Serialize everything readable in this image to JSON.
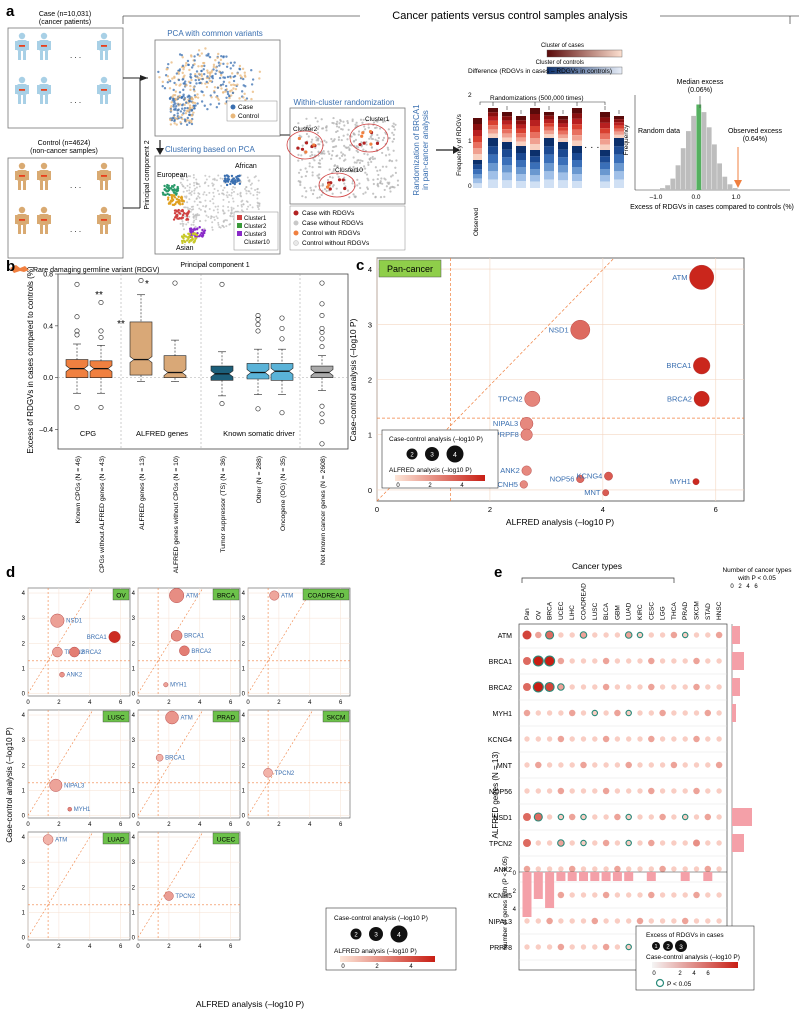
{
  "panels": {
    "a": {
      "label": "a",
      "header": "Cancer patients versus control samples analysis",
      "case_title": "Case (n=10,031)",
      "case_sub": "(cancer patients)",
      "control_title": "Control (n=4624)",
      "control_sub": "(non-cancer samples)",
      "rdgv_label": "Rare damaging germline variant (RDGV)",
      "pca_title": "PCA with common variants",
      "pca_legend": [
        "Case",
        "Control"
      ],
      "pca_ylabel": "Principal component 2",
      "pca_xlabel": "Principal component 1",
      "clustering_title": "Clustering based on PCA",
      "populations": [
        "African",
        "European",
        "Asian"
      ],
      "cluster_legend": [
        "Cluster1",
        "Cluster2",
        "Cluster3",
        "Cluster10"
      ],
      "within_title": "Within-cluster randomization",
      "within_clusters": [
        "Cluster2",
        "Cluster1",
        "Cluster10"
      ],
      "within_legend": [
        "Case with RDGVs",
        "Case without RDGVs",
        "Control with RDGVs",
        "Control without RDGVs"
      ],
      "rand_title_1": "Randomization of BRCA1",
      "rand_title_2": "in pan-cancer analysis",
      "difference_label": "Difference (RDGVs in cases – RDGVs in controls)",
      "freq_label": "Frequency of RDGVs",
      "observed_label": "Observed",
      "randomizations_label": "Randomizations (500,000 times)",
      "cluster_cases": "Cluster of cases",
      "cluster_controls": "Cluster of controls",
      "y_ticks": [
        "0",
        "1",
        "2"
      ],
      "hist_median": "Median excess",
      "hist_median_val": "(0.06%)",
      "hist_random": "Random data",
      "hist_observed": "Observed excess",
      "hist_observed_val": "(0.64%)",
      "hist_ylabel": "Frequency",
      "hist_xlabel": "Excess of RDGVs in cases compared to controls (%)",
      "hist_xticks": [
        "–1.0",
        "0.0",
        "1.0"
      ]
    },
    "b": {
      "label": "b",
      "ylabel": "Excess of RDGVs in cases compared to controls (%)",
      "yticks": [
        "–0.4",
        "0.0",
        "0.4",
        "0.8"
      ],
      "groups": [
        "CPG",
        "ALFRED genes",
        "Known somatic driver"
      ],
      "stars": [
        "**",
        "**",
        "*"
      ]
    },
    "c": {
      "label": "c",
      "title": "Pan-cancer",
      "xlabel": "ALFRED analysis  (–log10 P)",
      "ylabel": "Case-control analysis  (–log10 P)",
      "xticks": [
        "0",
        "2",
        "4",
        "6"
      ],
      "yticks": [
        "0",
        "1",
        "2",
        "3",
        "4"
      ],
      "legend_size_title": "Case-control analysis (–log10 P)",
      "legend_sizes": [
        "2",
        "3",
        "4"
      ],
      "legend_color_title": "ALFRED analysis (–log10 P)",
      "legend_color_ticks": [
        "0",
        "2",
        "4"
      ]
    },
    "d": {
      "label": "d",
      "ylabel": "Case-control analysis  (–log10 P)",
      "xlabel": "ALFRED analysis  (–log10 P)",
      "ticks": [
        "0",
        "2",
        "4",
        "6"
      ],
      "yticks": [
        "0",
        "1",
        "2",
        "3",
        "4"
      ],
      "legend_size_title": "Case-control analysis (–log10 P)",
      "legend_sizes": [
        "2",
        "3",
        "4"
      ],
      "legend_color_title": "ALFRED analysis (–log10 P)",
      "legend_color_ticks": [
        "0",
        "2",
        "4"
      ]
    },
    "e": {
      "label": "e",
      "header": "Cancer types",
      "cancer_types": [
        "Pan",
        "OV",
        "BRCA",
        "UCEC",
        "LIHC",
        "COADREAD",
        "LUSC",
        "BLCA",
        "GBM",
        "LUAD",
        "KIRC",
        "CESC",
        "LGG",
        "THCA",
        "PRAD",
        "SKCM",
        "STAD",
        "HNSC"
      ],
      "genes": [
        "ATM",
        "BRCA1",
        "BRCA2",
        "MYH1",
        "KCNG4",
        "MNT",
        "NOP56",
        "NSD1",
        "TPCN2",
        "ANK2",
        "KCNH5",
        "NIPAL3",
        "PRPF8"
      ],
      "gene_axis_label": "ALFRED genes (N = 13)",
      "right_bar_title": "Number of cancer types with P < 0.05",
      "right_bar_ticks": [
        "0",
        "2",
        "4",
        "6"
      ],
      "bottom_bar_label": "Number of genes with (P < 0.05)",
      "bottom_bar_ticks": [
        "0",
        "2",
        "4"
      ],
      "legend_excess": "Excess of RDGVs in cases",
      "legend_sizes": [
        "1",
        "2",
        "3"
      ],
      "legend_color_title": "Case-control analysis (–log10 P)",
      "legend_color_ticks": [
        "0",
        "2",
        "4",
        "6"
      ],
      "legend_p": "P < 0.05"
    }
  },
  "chart_data": [
    {
      "type": "box",
      "panel": "b",
      "categories": [
        "Known CPGs (N = 46)",
        "CPGs without ALFRED genes (N = 43)",
        "ALFRED genes (N = 13)",
        "ALFRED genes without CPGs (N = 10)",
        "Tumor suppressor (TS) (N = 36)",
        "Other (N = 288)",
        "Oncogene (OG) (N = 35)",
        "Not known cancer genes (N = 2608)"
      ],
      "colors": [
        "#f08040",
        "#f08040",
        "#d9a877",
        "#d9a877",
        "#1c5f7a",
        "#5ab3d8",
        "#5ab3d8",
        "#aaaaaa"
      ],
      "boxes": [
        {
          "q1": 0.0,
          "median": 0.07,
          "q3": 0.14,
          "low": -0.12,
          "high": 0.26,
          "out": [
            0.33,
            0.36,
            0.47,
            0.72,
            -0.23
          ]
        },
        {
          "q1": 0.0,
          "median": 0.07,
          "q3": 0.13,
          "low": -0.12,
          "high": 0.25,
          "out": [
            0.31,
            0.36,
            0.58,
            -0.23
          ]
        },
        {
          "q1": 0.02,
          "median": 0.14,
          "q3": 0.43,
          "low": -0.03,
          "high": 0.64,
          "out": [
            0.75
          ]
        },
        {
          "q1": 0.0,
          "median": 0.04,
          "q3": 0.17,
          "low": -0.03,
          "high": 0.29,
          "out": [
            0.73
          ]
        },
        {
          "q1": -0.02,
          "median": 0.03,
          "q3": 0.09,
          "low": -0.14,
          "high": 0.2,
          "out": [
            0.72,
            -0.2
          ]
        },
        {
          "q1": -0.01,
          "median": 0.04,
          "q3": 0.11,
          "low": -0.13,
          "high": 0.22,
          "out": [
            0.36,
            0.41,
            0.45,
            0.48,
            -0.24
          ]
        },
        {
          "q1": -0.02,
          "median": 0.05,
          "q3": 0.11,
          "low": -0.13,
          "high": 0.22,
          "out": [
            0.3,
            0.38,
            0.46,
            -0.27
          ]
        },
        {
          "q1": 0.0,
          "median": 0.04,
          "q3": 0.09,
          "low": -0.1,
          "high": 0.17,
          "out": [
            0.24,
            0.3,
            0.35,
            0.38,
            0.48,
            0.57,
            0.73,
            -0.22,
            -0.28,
            -0.34,
            -0.51
          ]
        }
      ],
      "ylim": [
        -0.55,
        0.8
      ]
    },
    {
      "type": "scatter",
      "panel": "c",
      "xlim": [
        0,
        6.5
      ],
      "ylim": [
        -0.2,
        4.2
      ],
      "points": [
        {
          "gene": "ATM",
          "x": 5.75,
          "y": 3.85,
          "s": 3.8
        },
        {
          "gene": "NSD1",
          "x": 3.6,
          "y": 2.9,
          "s": 3.0
        },
        {
          "gene": "BRCA1",
          "x": 5.75,
          "y": 2.25,
          "s": 2.6
        },
        {
          "gene": "BRCA2",
          "x": 5.75,
          "y": 1.65,
          "s": 2.4
        },
        {
          "gene": "TPCN2",
          "x": 2.75,
          "y": 1.65,
          "s": 2.4
        },
        {
          "gene": "NIPAL3",
          "x": 2.65,
          "y": 1.2,
          "s": 2.0
        },
        {
          "gene": "PRPF8",
          "x": 2.65,
          "y": 1.0,
          "s": 1.8
        },
        {
          "gene": "ANK2",
          "x": 2.65,
          "y": 0.35,
          "s": 1.5
        },
        {
          "gene": "KCNH5",
          "x": 2.6,
          "y": 0.1,
          "s": 1.2
        },
        {
          "gene": "NOP56",
          "x": 3.6,
          "y": 0.2,
          "s": 1.2
        },
        {
          "gene": "KCNG4",
          "x": 4.1,
          "y": 0.25,
          "s": 1.3
        },
        {
          "gene": "MNT",
          "x": 4.05,
          "y": -0.05,
          "s": 1.0
        },
        {
          "gene": "MYH1",
          "x": 5.65,
          "y": 0.15,
          "s": 1.0
        }
      ]
    },
    {
      "type": "scatter",
      "panel": "d",
      "subplots": [
        {
          "title": "OV",
          "points": [
            {
              "gene": "NSD1",
              "x": 1.9,
              "y": 2.9,
              "s": 2.7
            },
            {
              "gene": "BRCA1",
              "x": 5.6,
              "y": 2.25,
              "s": 2.3
            },
            {
              "gene": "TPCN2",
              "x": 1.9,
              "y": 1.65,
              "s": 2.0
            },
            {
              "gene": "BRCA2",
              "x": 3.0,
              "y": 1.65,
              "s": 2.0
            },
            {
              "gene": "ANK2",
              "x": 2.2,
              "y": 0.75,
              "s": 1.0
            }
          ]
        },
        {
          "title": "BRCA",
          "points": [
            {
              "gene": "ATM",
              "x": 2.5,
              "y": 3.9,
              "s": 2.9
            },
            {
              "gene": "BRCA1",
              "x": 2.5,
              "y": 2.3,
              "s": 2.2
            },
            {
              "gene": "BRCA2",
              "x": 3.0,
              "y": 1.7,
              "s": 2.0
            },
            {
              "gene": "MYH1",
              "x": 1.8,
              "y": 0.35,
              "s": 0.9
            }
          ]
        },
        {
          "title": "COADREAD",
          "points": [
            {
              "gene": "ATM",
              "x": 1.7,
              "y": 3.9,
              "s": 1.9
            }
          ]
        },
        {
          "title": "LUSC",
          "points": [
            {
              "gene": "NIPAL3",
              "x": 1.8,
              "y": 1.2,
              "s": 2.5
            },
            {
              "gene": "MYH1",
              "x": 2.7,
              "y": 0.25,
              "s": 0.8
            }
          ]
        },
        {
          "title": "PRAD",
          "points": [
            {
              "gene": "ATM",
              "x": 2.2,
              "y": 3.9,
              "s": 2.6
            },
            {
              "gene": "BRCA1",
              "x": 1.4,
              "y": 2.3,
              "s": 1.4
            }
          ]
        },
        {
          "title": "SKCM",
          "points": [
            {
              "gene": "TPCN2",
              "x": 1.3,
              "y": 1.7,
              "s": 1.8
            }
          ]
        },
        {
          "title": "LUAD",
          "points": [
            {
              "gene": "ATM",
              "x": 1.3,
              "y": 3.9,
              "s": 2.0
            }
          ]
        },
        {
          "title": "UCEC",
          "points": [
            {
              "gene": "TPCN2",
              "x": 2.0,
              "y": 1.65,
              "s": 1.8
            }
          ]
        }
      ]
    },
    {
      "type": "heatmap",
      "panel": "e",
      "right_bar_values": [
        2,
        3,
        2,
        1,
        0,
        0,
        0,
        5,
        3,
        0,
        0,
        0,
        0
      ],
      "bottom_bar_values": [
        5,
        3,
        4,
        1,
        1,
        1,
        1,
        1,
        1,
        1,
        0,
        1,
        0,
        0,
        1,
        0,
        1,
        0
      ]
    }
  ]
}
